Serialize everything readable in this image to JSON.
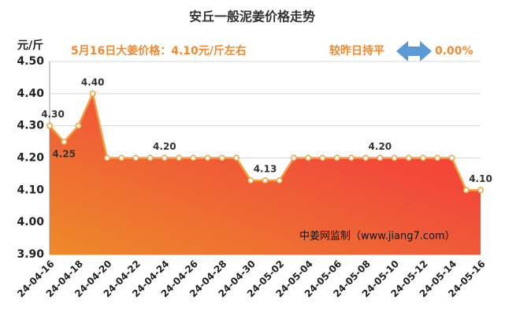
{
  "chart_data": {
    "type": "area",
    "title": "安丘一般泥姜价格走势",
    "y_unit": "元/斤",
    "headline": "5月16日大姜价格：4.10元/斤左右",
    "change_label": "较昨日持平",
    "change_value": "0.00%",
    "watermark": "中姜网监制（www.jiang7.com）",
    "categories": [
      "24-04-16",
      null,
      "24-04-18",
      null,
      "24-04-20",
      null,
      "24-04-22",
      null,
      "24-04-24",
      null,
      "24-04-26",
      null,
      "24-04-28",
      null,
      "24-04-30",
      null,
      "24-05-02",
      null,
      "24-05-04",
      null,
      "24-05-06",
      null,
      "24-05-08",
      null,
      "24-05-10",
      null,
      "24-05-12",
      null,
      "24-05-14",
      null,
      "24-05-16"
    ],
    "values": [
      4.3,
      4.25,
      4.3,
      4.4,
      4.2,
      4.2,
      4.2,
      4.2,
      4.2,
      4.2,
      4.2,
      4.2,
      4.2,
      4.2,
      4.13,
      4.13,
      4.13,
      4.2,
      4.2,
      4.2,
      4.2,
      4.2,
      4.2,
      4.2,
      4.2,
      4.2,
      4.2,
      4.2,
      4.2,
      4.1,
      4.1
    ],
    "value_labels": [
      "4.30",
      "4.25",
      null,
      "4.40",
      null,
      null,
      null,
      null,
      "4.20",
      null,
      null,
      null,
      null,
      null,
      null,
      "4.13",
      null,
      null,
      null,
      null,
      null,
      null,
      null,
      "4.20",
      null,
      null,
      null,
      null,
      null,
      null,
      "4.10"
    ],
    "color": "#f0a040",
    "ylim": [
      3.9,
      4.5
    ],
    "yticks": [
      {
        "value": 3.9,
        "label": "3.90"
      },
      {
        "value": 4.0,
        "label": "4.00"
      },
      {
        "value": 4.1,
        "label": "4.10"
      },
      {
        "value": 4.2,
        "label": "4.20"
      },
      {
        "value": 4.3,
        "label": "4.30"
      },
      {
        "value": 4.4,
        "label": "4.40"
      },
      {
        "value": 4.5,
        "label": "4.50"
      }
    ],
    "grid": true
  }
}
